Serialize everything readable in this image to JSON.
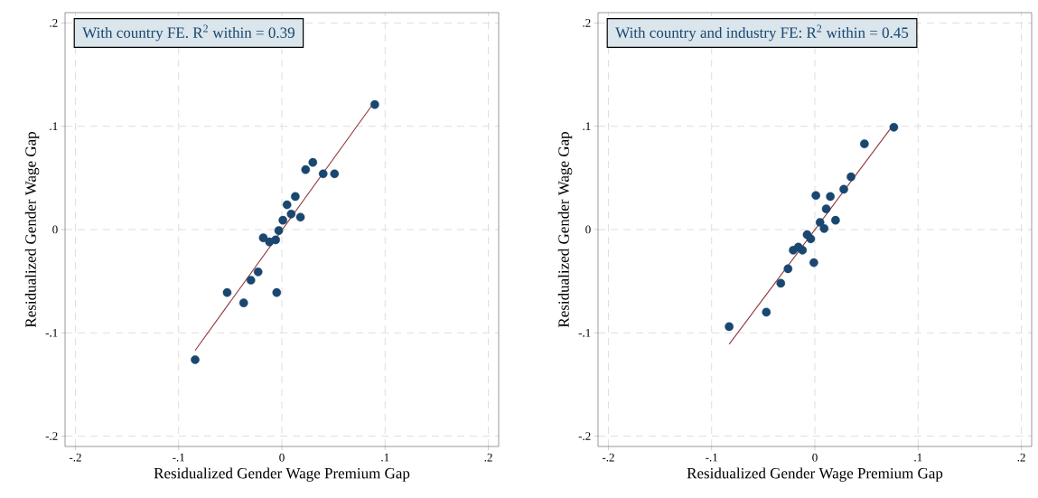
{
  "chart_data": [
    {
      "type": "scatter",
      "title": "With country FE. R$^{2}$ within = 0.39",
      "xlabel": "Residualized Gender Wage Premium Gap",
      "ylabel": "Residualized Gender Wage Gap",
      "xlim": [
        -0.21,
        0.21
      ],
      "ylim": [
        -0.21,
        0.21
      ],
      "grid": true,
      "xticks": [
        {
          "value": -0.2,
          "label": "-.2"
        },
        {
          "value": -0.1,
          "label": "-.1"
        },
        {
          "value": 0,
          "label": "0"
        },
        {
          "value": 0.1,
          "label": ".1"
        },
        {
          "value": 0.2,
          "label": ".2"
        }
      ],
      "yticks": [
        {
          "value": -0.2,
          "label": "-.2"
        },
        {
          "value": -0.1,
          "label": "-.1"
        },
        {
          "value": 0,
          "label": "0"
        },
        {
          "value": 0.1,
          "label": ".1"
        },
        {
          "value": 0.2,
          "label": ".2"
        }
      ],
      "series": [
        {
          "marker": "circle",
          "color": "#1a476f",
          "x": [
            0.09,
            0.03,
            0.023,
            0.04,
            0.051,
            0.013,
            0.005,
            0.009,
            0.018,
            0.001,
            -0.003,
            -0.018,
            -0.012,
            -0.006,
            -0.023,
            -0.03,
            -0.053,
            -0.005,
            -0.037,
            -0.084
          ],
          "values": [
            0.121,
            0.065,
            0.058,
            0.054,
            0.054,
            0.032,
            0.024,
            0.015,
            0.012,
            0.009,
            -0.001,
            -0.008,
            -0.012,
            -0.01,
            -0.041,
            -0.049,
            -0.061,
            -0.061,
            -0.071,
            -0.126
          ]
        },
        {
          "type": "line",
          "marker": "none",
          "color": "#90353b",
          "line_style": "solid",
          "x": [
            -0.084,
            0.09
          ],
          "values": [
            -0.117,
            0.124
          ]
        }
      ]
    },
    {
      "type": "scatter",
      "title": "With country and industry FE: R$^{2}$ within = 0.45",
      "xlabel": "Residualized Gender Wage Premium Gap",
      "ylabel": "Residualized Gender Wage Gap",
      "xlim": [
        -0.21,
        0.21
      ],
      "ylim": [
        -0.21,
        0.21
      ],
      "grid": true,
      "xticks": [
        {
          "value": -0.2,
          "label": "-.2"
        },
        {
          "value": -0.1,
          "label": "-.1"
        },
        {
          "value": 0,
          "label": "0"
        },
        {
          "value": 0.1,
          "label": ".1"
        },
        {
          "value": 0.2,
          "label": ".2"
        }
      ],
      "yticks": [
        {
          "value": -0.2,
          "label": "-.2"
        },
        {
          "value": -0.1,
          "label": "-.1"
        },
        {
          "value": 0,
          "label": "0"
        },
        {
          "value": 0.1,
          "label": ".1"
        },
        {
          "value": 0.2,
          "label": ".2"
        }
      ],
      "series": [
        {
          "marker": "circle",
          "color": "#1a476f",
          "x": [
            0.0765,
            0.048,
            0.035,
            0.028,
            0.001,
            0.015,
            0.011,
            0.02,
            0.005,
            0.009,
            -0.0075,
            -0.004,
            -0.021,
            -0.016,
            -0.012,
            -0.001,
            -0.026,
            -0.033,
            -0.047,
            -0.083
          ],
          "values": [
            0.099,
            0.083,
            0.051,
            0.039,
            0.033,
            0.032,
            0.02,
            0.009,
            0.007,
            0.001,
            -0.005,
            -0.009,
            -0.02,
            -0.017,
            -0.02,
            -0.032,
            -0.038,
            -0.052,
            -0.08,
            -0.094
          ]
        },
        {
          "type": "line",
          "marker": "none",
          "color": "#90353b",
          "line_style": "solid",
          "x": [
            -0.083,
            0.0765
          ],
          "values": [
            -0.111,
            0.102
          ]
        }
      ]
    }
  ]
}
